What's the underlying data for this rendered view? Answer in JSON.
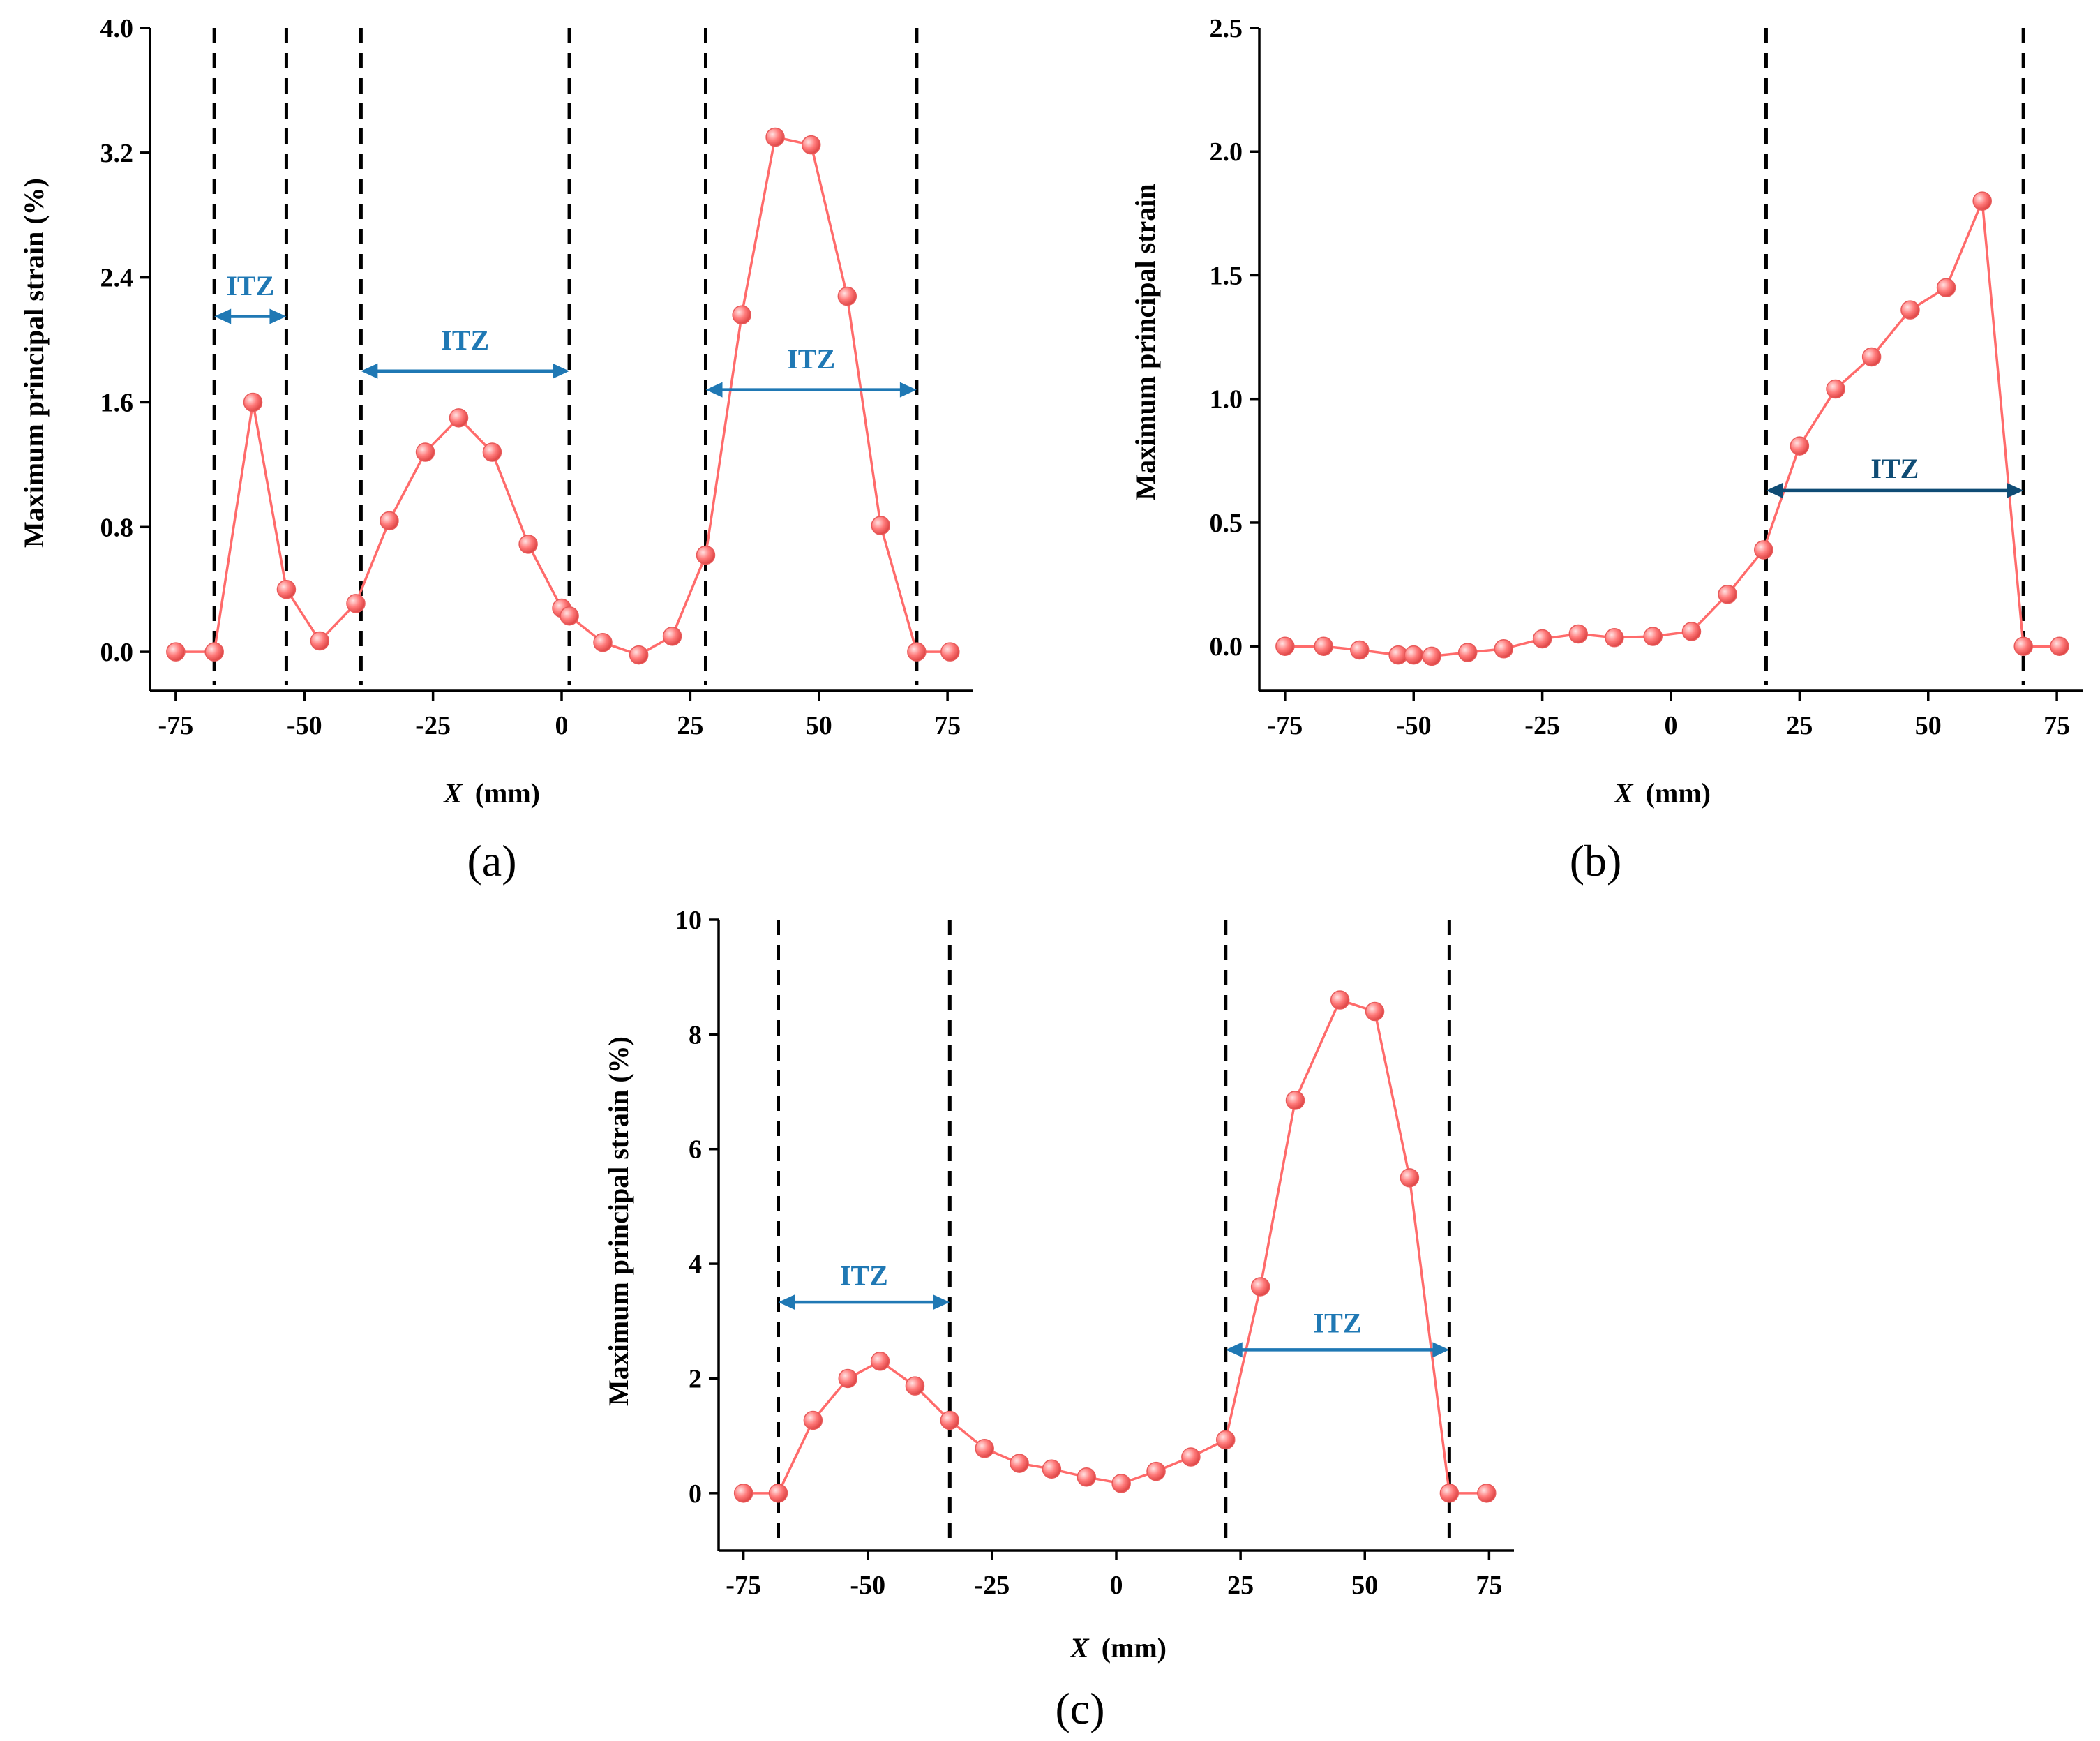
{
  "figure": {
    "colors": {
      "series": "#ff6b6b",
      "marker_fill": "#ff7a7a",
      "marker_highlight": "#ffd6d6",
      "itz_a": "#1f78b4",
      "itz_b": "#0f4c75",
      "itz_c": "#1f78b4",
      "axes": "#000000"
    },
    "icons": {
      "arrow": "double-headed-arrow-icon"
    }
  },
  "chart_data": [
    {
      "type": "line",
      "panel_label": "(a)",
      "xlabel_var": "X",
      "xlabel_unit": "(mm)",
      "ylabel": "Maximum principal strain  (%)",
      "xlim": [
        -80,
        80
      ],
      "ylim": [
        -0.25,
        4.0
      ],
      "xticks": [
        -75,
        -50,
        -25,
        0,
        25,
        50,
        75
      ],
      "xtick_labels": [
        "-75",
        "-50",
        "-25",
        "0",
        "25",
        "50",
        "75"
      ],
      "yticks": [
        0.0,
        0.8,
        1.6,
        2.4,
        3.2,
        4.0
      ],
      "ytick_labels": [
        "0.0",
        "0.8",
        "1.6",
        "2.4",
        "3.2",
        "4.0"
      ],
      "series": [
        {
          "name": "Maximum principal strain",
          "x": [
            -75,
            -67.5,
            -60,
            -53.5,
            -47,
            -40,
            -33.5,
            -26.5,
            -20,
            -13.5,
            -6.5,
            0,
            1.5,
            8,
            15,
            21.5,
            28,
            35,
            41.5,
            48.5,
            55.5,
            62,
            69,
            75.5
          ],
          "y": [
            0.0,
            0.0,
            1.6,
            0.4,
            0.07,
            0.31,
            0.84,
            1.28,
            1.5,
            1.28,
            0.69,
            0.28,
            0.23,
            0.06,
            -0.02,
            0.1,
            0.62,
            2.16,
            3.3,
            3.25,
            2.28,
            0.81,
            0.0,
            0.0
          ]
        }
      ],
      "dividers": [
        -67.5,
        -53.5,
        -39,
        1.5,
        28,
        69
      ],
      "itz": [
        {
          "label": "ITZ",
          "x0": -67.5,
          "x1": -53.5,
          "y": 2.15,
          "label_y": 2.35
        },
        {
          "label": "ITZ",
          "x0": -39,
          "x1": 1.5,
          "y": 1.8,
          "label_y": 2.0
        },
        {
          "label": "ITZ",
          "x0": 28,
          "x1": 69,
          "y": 1.68,
          "label_y": 1.88
        }
      ]
    },
    {
      "type": "line",
      "panel_label": "(b)",
      "xlabel_var": "X",
      "xlabel_unit": "(mm)",
      "ylabel": "Maximum principal strain",
      "xlim": [
        -80,
        80
      ],
      "ylim": [
        -0.18,
        2.5
      ],
      "xticks": [
        -75,
        -50,
        -25,
        0,
        25,
        50,
        75
      ],
      "xtick_labels": [
        "-75",
        "-50",
        "-25",
        "0",
        "25",
        "50",
        "75"
      ],
      "yticks": [
        0.0,
        0.5,
        1.0,
        1.5,
        2.0,
        2.5
      ],
      "ytick_labels": [
        "0.0",
        "0.5",
        "1.0",
        "1.5",
        "2.0",
        "2.5"
      ],
      "series": [
        {
          "name": "Maximum principal strain",
          "x": [
            -75,
            -67.5,
            -60.5,
            -53,
            -50,
            -46.5,
            -39.5,
            -32.5,
            -25,
            -18,
            -11,
            -3.5,
            4,
            11,
            18,
            25,
            32,
            39,
            46.5,
            53.5,
            60.5,
            68.5,
            75.5
          ],
          "y": [
            0.0,
            0.0,
            -0.015,
            -0.035,
            -0.035,
            -0.04,
            -0.025,
            -0.01,
            0.03,
            0.05,
            0.035,
            0.04,
            0.06,
            0.21,
            0.39,
            0.81,
            1.04,
            1.17,
            1.36,
            1.45,
            1.8,
            0.0,
            0.0
          ]
        }
      ],
      "dividers": [
        18.5,
        68.5
      ],
      "itz": [
        {
          "label": "ITZ",
          "x0": 18.5,
          "x1": 68.5,
          "y": 0.63,
          "label_y": 0.72
        }
      ]
    },
    {
      "type": "line",
      "panel_label": "(c)",
      "xlabel_var": "X",
      "xlabel_unit": "(mm)",
      "ylabel": "Maximum principal strain (%)",
      "xlim": [
        -80,
        80
      ],
      "ylim": [
        -1.0,
        10
      ],
      "xticks": [
        -75,
        -50,
        -25,
        0,
        25,
        50,
        75
      ],
      "xtick_labels": [
        "-75",
        "-50",
        "-25",
        "0",
        "25",
        "50",
        "75"
      ],
      "yticks": [
        0,
        2,
        4,
        6,
        8,
        10
      ],
      "ytick_labels": [
        "0",
        "2",
        "4",
        "6",
        "8",
        "10"
      ],
      "series": [
        {
          "name": "Maximum principal strain",
          "x": [
            -75,
            -68,
            -61,
            -54,
            -47.5,
            -40.5,
            -33.5,
            -26.5,
            -19.5,
            -13,
            -6,
            1,
            8,
            15,
            22,
            29,
            36,
            45,
            52,
            59,
            67,
            74.5
          ],
          "y": [
            0,
            0,
            1.27,
            2.0,
            2.3,
            1.87,
            1.27,
            0.78,
            0.52,
            0.42,
            0.28,
            0.17,
            0.38,
            0.63,
            0.93,
            3.6,
            6.85,
            8.6,
            8.4,
            5.5,
            0,
            0
          ]
        }
      ],
      "dividers": [
        -68,
        -33.5,
        22,
        67
      ],
      "itz": [
        {
          "label": "ITZ",
          "x0": -68,
          "x1": -33.5,
          "y": 3.33,
          "label_y": 3.8
        },
        {
          "label": "ITZ",
          "x0": 22,
          "x1": 67,
          "y": 2.5,
          "label_y": 2.97
        }
      ]
    }
  ]
}
